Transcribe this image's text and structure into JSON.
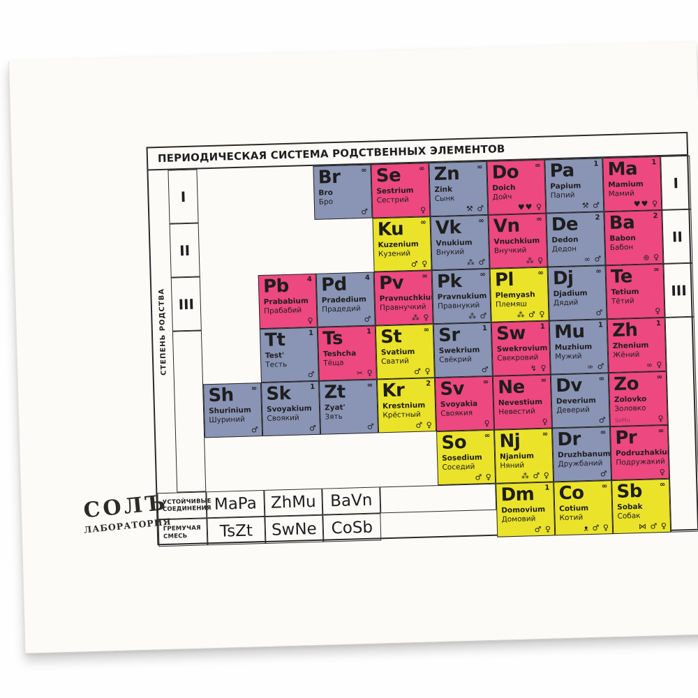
{
  "title": "ПЕРИОДИЧЕСКАЯ СИСТЕМА РОДСТВЕННЫХ ЭЛЕМЕНТОВ",
  "side_label": "СТЕПЕНЬ РОДСТВА",
  "row_numerals": [
    "I",
    "II",
    "III"
  ],
  "colors": {
    "blue": "#8a94b5",
    "pink": "#ee4880",
    "yellow": "#ebe32a",
    "frame": "#2a2a2a"
  },
  "legend_rows": [
    {
      "label": "УСТОЙЧИВЫЕ СОЕДИНЕНИЯ",
      "formulas": [
        "MaPa",
        "ZhMu",
        "BaVn"
      ]
    },
    {
      "label": "ГРЕМУЧАЯ СМЕСЬ",
      "formulas": [
        "TsZt",
        "SwNe",
        "CoSb"
      ]
    }
  ],
  "elements": [
    {
      "symbol": "Br",
      "latin": "Bro",
      "cyrillic": "Бро",
      "badge": "∞",
      "color": "blue",
      "row": 1,
      "col": 3,
      "icons": [
        "male"
      ]
    },
    {
      "symbol": "Se",
      "latin": "Sestrium",
      "cyrillic": "Сестрий",
      "badge": "∞",
      "color": "pink",
      "row": 1,
      "col": 4,
      "icons": [
        "female"
      ]
    },
    {
      "symbol": "Zn",
      "latin": "Zink",
      "cyrillic": "Сынк",
      "badge": "∞",
      "color": "blue",
      "row": 1,
      "col": 5,
      "icons": [
        "tools",
        "male"
      ]
    },
    {
      "symbol": "Do",
      "latin": "Doich",
      "cyrillic": "Дойч",
      "badge": "∞",
      "color": "pink",
      "row": 1,
      "col": 6,
      "icons": [
        "hearts",
        "female"
      ]
    },
    {
      "symbol": "Pa",
      "latin": "Papium",
      "cyrillic": "Папий",
      "badge": "1",
      "color": "blue",
      "row": 1,
      "col": 7,
      "icons": [
        "tools",
        "male"
      ]
    },
    {
      "symbol": "Ma",
      "latin": "Mamium",
      "cyrillic": "Мамий",
      "badge": "1",
      "color": "pink",
      "row": 1,
      "col": 8,
      "icons": [
        "hearts",
        "female"
      ]
    },
    {
      "symbol": "Ku",
      "latin": "Kuzenium",
      "cyrillic": "Кузений",
      "badge": "∞",
      "color": "yellow",
      "row": 2,
      "col": 4,
      "icons": [
        "male",
        "female"
      ]
    },
    {
      "symbol": "Vk",
      "latin": "Vnukium",
      "cyrillic": "Внукий",
      "badge": "∞",
      "color": "blue",
      "row": 2,
      "col": 5,
      "icons": [
        "cluster",
        "male"
      ]
    },
    {
      "symbol": "Vn",
      "latin": "Vnuchkium",
      "cyrillic": "Внучкий",
      "badge": "∞",
      "color": "pink",
      "row": 2,
      "col": 6,
      "icons": [
        "cluster",
        "female"
      ]
    },
    {
      "symbol": "De",
      "latin": "Dedon",
      "cyrillic": "Дедон",
      "badge": "2",
      "color": "blue",
      "row": 2,
      "col": 7,
      "icons": [
        "glasses",
        "male"
      ]
    },
    {
      "symbol": "Ba",
      "latin": "Babon",
      "cyrillic": "Бабон",
      "badge": "2",
      "color": "pink",
      "row": 2,
      "col": 8,
      "icons": [
        "yarn",
        "female"
      ]
    },
    {
      "symbol": "Pb",
      "latin": "Prababium",
      "cyrillic": "Прабабий",
      "badge": "4",
      "color": "pink",
      "row": 3,
      "col": 2,
      "icons": [
        "female"
      ]
    },
    {
      "symbol": "Pd",
      "latin": "Pradedium",
      "cyrillic": "Прадедий",
      "badge": "4",
      "color": "blue",
      "row": 3,
      "col": 3,
      "icons": [
        "male"
      ]
    },
    {
      "symbol": "Pv",
      "latin": "Pravnuchkium",
      "cyrillic": "Правнучкий",
      "badge": "∞",
      "color": "pink",
      "row": 3,
      "col": 4,
      "icons": [
        "cluster",
        "female"
      ]
    },
    {
      "symbol": "Pk",
      "latin": "Pravnukium",
      "cyrillic": "Правнукий",
      "badge": "∞",
      "color": "blue",
      "row": 3,
      "col": 5,
      "icons": [
        "cluster",
        "male"
      ]
    },
    {
      "symbol": "Pl",
      "latin": "Plemyash",
      "cyrillic": "Племяш",
      "badge": "∞",
      "color": "yellow",
      "row": 3,
      "col": 6,
      "icons": [
        "cluster",
        "male",
        "female"
      ]
    },
    {
      "symbol": "Dj",
      "latin": "Djadium",
      "cyrillic": "Дядий",
      "badge": "∞",
      "color": "blue",
      "row": 3,
      "col": 7,
      "icons": [
        "male"
      ]
    },
    {
      "symbol": "Te",
      "latin": "Tetium",
      "cyrillic": "Тётий",
      "badge": "∞",
      "color": "pink",
      "row": 3,
      "col": 8,
      "icons": [
        "female"
      ]
    },
    {
      "symbol": "Tt",
      "latin": "Test'",
      "cyrillic": "Тесть",
      "badge": "1",
      "color": "blue",
      "row": 4,
      "col": 2,
      "icons": [
        "male"
      ]
    },
    {
      "symbol": "Ts",
      "latin": "Teshcha",
      "cyrillic": "Тёща",
      "badge": "1",
      "color": "pink",
      "row": 4,
      "col": 3,
      "icons": [
        "scissors",
        "female"
      ]
    },
    {
      "symbol": "St",
      "latin": "Svatium",
      "cyrillic": "Сватий",
      "badge": "∞",
      "color": "yellow",
      "row": 4,
      "col": 4,
      "icons": [
        "male",
        "female"
      ]
    },
    {
      "symbol": "Sr",
      "latin": "Swekrium",
      "cyrillic": "Свёкрий",
      "badge": "1",
      "color": "blue",
      "row": 4,
      "col": 5,
      "icons": [
        "male"
      ]
    },
    {
      "symbol": "Sw",
      "latin": "Swekrovium",
      "cyrillic": "Свекровий",
      "badge": "1",
      "color": "pink",
      "row": 4,
      "col": 6,
      "icons": [
        "lightning",
        "female"
      ]
    },
    {
      "symbol": "Mu",
      "latin": "Muzhium",
      "cyrillic": "Мужий",
      "badge": "1",
      "color": "blue",
      "row": 4,
      "col": 7,
      "icons": [
        "rings",
        "male"
      ]
    },
    {
      "symbol": "Zh",
      "latin": "Zhenium",
      "cyrillic": "Жёний",
      "badge": "1",
      "color": "pink",
      "row": 4,
      "col": 8,
      "icons": [
        "rings",
        "female"
      ]
    },
    {
      "symbol": "Sh",
      "latin": "Shurinium",
      "cyrillic": "Шуриний",
      "badge": "∞",
      "color": "blue",
      "row": 5,
      "col": 1,
      "icons": [
        "male"
      ]
    },
    {
      "symbol": "Sk",
      "latin": "Svoyakium",
      "cyrillic": "Своякий",
      "badge": "1",
      "color": "blue",
      "row": 5,
      "col": 2,
      "icons": [
        "male"
      ]
    },
    {
      "symbol": "Zt",
      "latin": "Zyat'",
      "cyrillic": "Зять",
      "badge": "∞",
      "color": "blue",
      "row": 5,
      "col": 3,
      "icons": [
        "male"
      ]
    },
    {
      "symbol": "Kr",
      "latin": "Krestnium",
      "cyrillic": "Крёстный",
      "badge": "2",
      "color": "yellow",
      "row": 5,
      "col": 4,
      "icons": [
        "male",
        "female"
      ]
    },
    {
      "symbol": "Sv",
      "latin": "Svoyakia",
      "cyrillic": "Своякия",
      "badge": "∞",
      "color": "pink",
      "row": 5,
      "col": 5,
      "icons": [
        "female"
      ]
    },
    {
      "symbol": "Ne",
      "latin": "Nevestium",
      "cyrillic": "Невестий",
      "badge": "∞",
      "color": "pink",
      "row": 5,
      "col": 6,
      "icons": [
        "female"
      ]
    },
    {
      "symbol": "Dv",
      "latin": "Deverium",
      "cyrillic": "Деверий",
      "badge": "∞",
      "color": "blue",
      "row": 5,
      "col": 7,
      "icons": [
        "male"
      ]
    },
    {
      "symbol": "Zo",
      "latin": "Zolovko",
      "cyrillic": "Золовко",
      "badge": "∞",
      "color": "pink",
      "row": 5,
      "col": 8,
      "icons": [
        "female"
      ],
      "sub": "SeMu"
    },
    {
      "symbol": "So",
      "latin": "Sosedium",
      "cyrillic": "Соседий",
      "badge": "∞",
      "color": "yellow",
      "row": 6,
      "col": 5,
      "icons": [
        "male",
        "female"
      ]
    },
    {
      "symbol": "Nj",
      "latin": "Njanium",
      "cyrillic": "Няний",
      "badge": "∞",
      "color": "yellow",
      "row": 6,
      "col": 6,
      "icons": [
        "cluster",
        "male",
        "female"
      ]
    },
    {
      "symbol": "Dr",
      "latin": "Druzhbanum",
      "cyrillic": "Дружбаний",
      "badge": "∞",
      "color": "blue",
      "row": 6,
      "col": 7,
      "icons": [
        "male"
      ]
    },
    {
      "symbol": "Pr",
      "latin": "Podruzhakium",
      "cyrillic": "Подружакий",
      "badge": "∞",
      "color": "pink",
      "row": 6,
      "col": 8,
      "icons": [
        "female"
      ]
    },
    {
      "symbol": "Dm",
      "latin": "Domovium",
      "cyrillic": "Домовий",
      "badge": "1",
      "color": "yellow",
      "row": 7,
      "col": 6,
      "icons": [
        "male",
        "female"
      ]
    },
    {
      "symbol": "Co",
      "latin": "Cotium",
      "cyrillic": "Котий",
      "badge": "∞",
      "color": "yellow",
      "row": 7,
      "col": 7,
      "icons": [
        "mouse",
        "male",
        "female"
      ]
    },
    {
      "symbol": "Sb",
      "latin": "Sobak",
      "cyrillic": "Собак",
      "badge": "∞",
      "color": "yellow",
      "row": 7,
      "col": 8,
      "icons": [
        "bone",
        "male",
        "female"
      ]
    }
  ],
  "logo": {
    "name": "СОЛЪ",
    "sub": "ЛАБОРАТОРИЯ"
  }
}
